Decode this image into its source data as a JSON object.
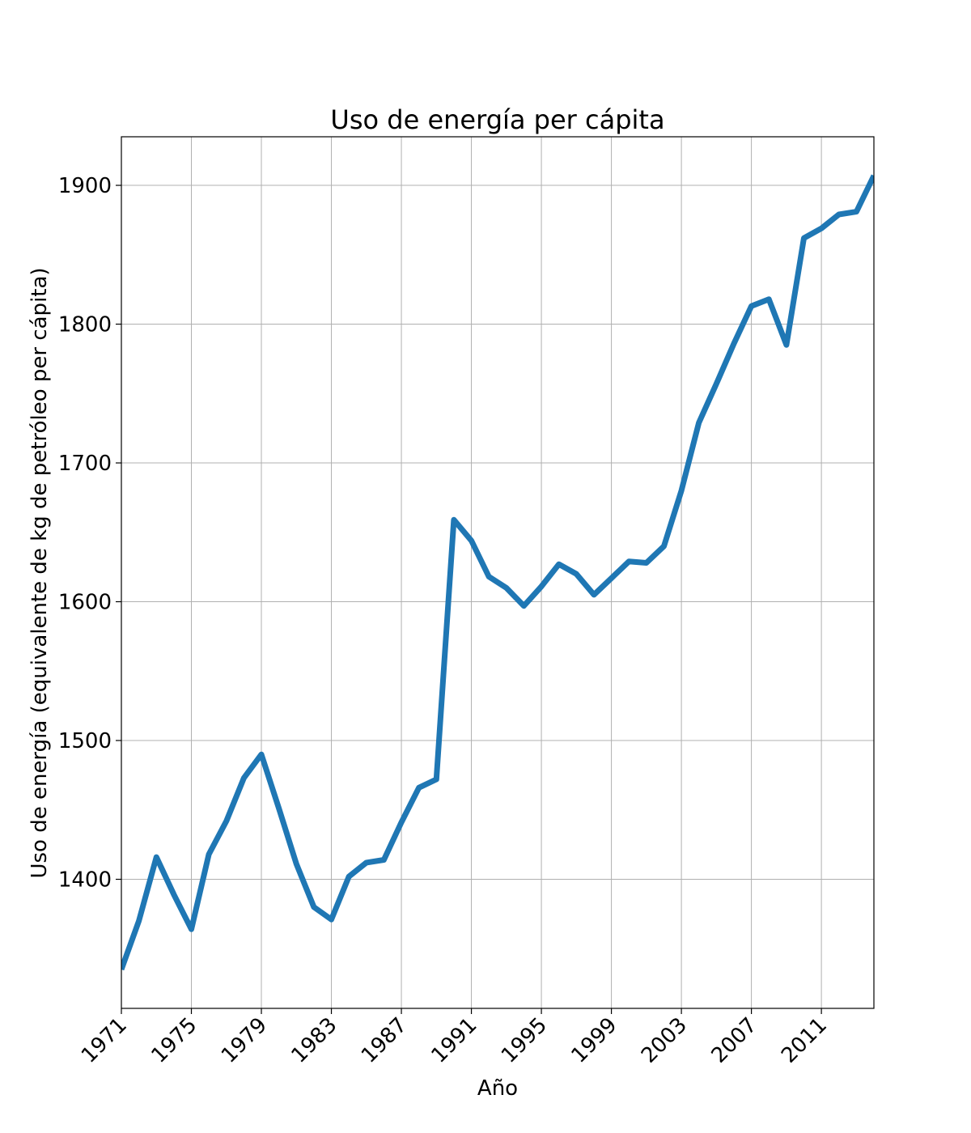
{
  "chart_data": {
    "type": "line",
    "title": "Uso de energía per cápita",
    "xlabel": "Año",
    "ylabel": "Uso de energía (equivalente de kg de petróleo per cápita)",
    "xlim": [
      1971,
      2014
    ],
    "ylim": [
      1307,
      1935
    ],
    "grid": true,
    "xticks": [
      "1971",
      "1975",
      "1979",
      "1983",
      "1987",
      "1991",
      "1995",
      "1999",
      "2003",
      "2007",
      "2011"
    ],
    "yticks": [
      "1400",
      "1500",
      "1600",
      "1700",
      "1800",
      "1900"
    ],
    "color": "#1f77b4",
    "series": [
      {
        "x": [
          1971,
          1972,
          1973,
          1974,
          1975,
          1976,
          1977,
          1978,
          1979,
          1980,
          1981,
          1982,
          1983,
          1984,
          1985,
          1986,
          1987,
          1988,
          1989,
          1990,
          1991,
          1992,
          1993,
          1994,
          1995,
          1996,
          1997,
          1998,
          1999,
          2000,
          2001,
          2002,
          2003,
          2004,
          2005,
          2006,
          2007,
          2008,
          2009,
          2010,
          2011,
          2012,
          2013,
          2014
        ],
        "values": [
          1335,
          1370,
          1416,
          1389,
          1364,
          1418,
          1442,
          1473,
          1490,
          1451,
          1411,
          1380,
          1371,
          1402,
          1412,
          1414,
          1441,
          1466,
          1472,
          1659,
          1644,
          1618,
          1610,
          1597,
          1611,
          1627,
          1620,
          1605,
          1617,
          1629,
          1628,
          1640,
          1680,
          1729,
          1757,
          1786,
          1813,
          1818,
          1785,
          1862,
          1869,
          1879,
          1881,
          1907
        ]
      }
    ]
  }
}
